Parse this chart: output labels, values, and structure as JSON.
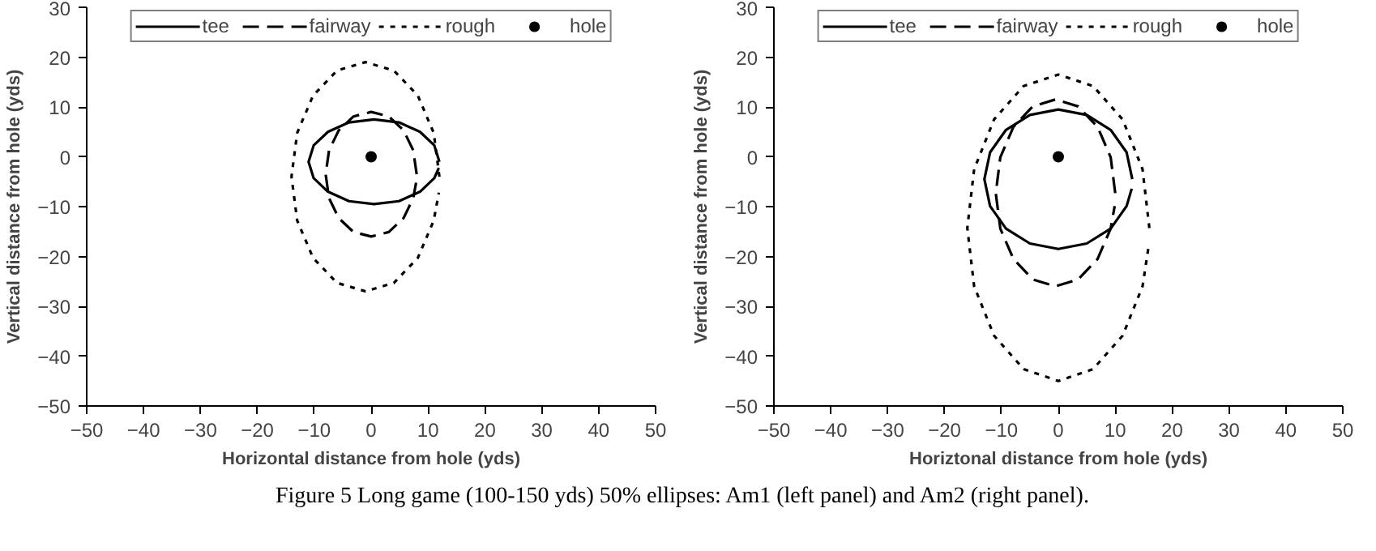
{
  "chart_data": [
    {
      "type": "line",
      "xlabel": "Horizontal distance from hole (yds)",
      "ylabel": "Vertical distance from hole (yds)",
      "xlim": [
        -50,
        50
      ],
      "ylim": [
        -50,
        30
      ],
      "xticks": [
        -50,
        -40,
        -30,
        -20,
        -10,
        0,
        10,
        20,
        30,
        40,
        50
      ],
      "yticks": [
        -50,
        -40,
        -30,
        -20,
        -10,
        0,
        10,
        20,
        30
      ],
      "grid": false,
      "legend": "top",
      "series": [
        {
          "name": "tee",
          "color": "#000000",
          "line_style": "solid",
          "x": [
            12,
            11.1,
            8.6,
            4.9,
            0.5,
            -3.9,
            -7.6,
            -10.1,
            -11,
            -10.1,
            -7.6,
            -3.9,
            0.5,
            4.9,
            8.6,
            11.1,
            11.9
          ],
          "values": [
            -1,
            2.3,
            5.0,
            6.9,
            7.5,
            6.9,
            5.0,
            2.3,
            -1,
            -4.3,
            -7.0,
            -8.9,
            -9.5,
            -8.9,
            -7.0,
            -4.3,
            -2.2
          ]
        },
        {
          "name": "fairway",
          "color": "#000000",
          "line_style": "dashed",
          "x": [
            8,
            7.4,
            5.7,
            3.1,
            0,
            -3.1,
            -5.7,
            -7.4,
            -8,
            -7.4,
            -5.7,
            -3.1,
            0,
            3.1,
            5.7,
            7.4,
            7.9
          ],
          "values": [
            -3.5,
            1.3,
            5.3,
            8.1,
            9,
            8.1,
            5.3,
            1.3,
            -3.5,
            -8.3,
            -12.3,
            -15.1,
            -16,
            -15.1,
            -12.3,
            -8.3,
            -5.2
          ]
        },
        {
          "name": "rough",
          "color": "#000000",
          "line_style": "dotted",
          "x": [
            12,
            11.0,
            8.2,
            4.0,
            -1,
            -6.0,
            -10.2,
            -13.0,
            -14,
            -13.0,
            -10.2,
            -6.0,
            -1,
            4.0,
            8.2,
            11.0,
            11.9
          ],
          "values": [
            -4,
            4.8,
            12.3,
            17.3,
            19,
            17.3,
            12.3,
            4.8,
            -4,
            -12.8,
            -20.3,
            -25.3,
            -27,
            -25.3,
            -20.3,
            -12.8,
            -7.2
          ]
        },
        {
          "name": "hole",
          "type": "scatter",
          "marker": "circle",
          "color": "#000000",
          "x": [
            0
          ],
          "values": [
            0
          ]
        }
      ]
    },
    {
      "type": "line",
      "xlabel": "Horiztonal distance from hole (yds)",
      "ylabel": "Vertical distance from hole (yds)",
      "xlim": [
        -50,
        50
      ],
      "ylim": [
        -50,
        30
      ],
      "xticks": [
        -50,
        -40,
        -30,
        -20,
        -10,
        0,
        10,
        20,
        30,
        40,
        50
      ],
      "yticks": [
        -50,
        -40,
        -30,
        -20,
        -10,
        0,
        10,
        20,
        30
      ],
      "grid": false,
      "legend": "top",
      "annotations": [
        "Figure 5 Long game (100-150 yds) 50% ellipses: Am1 (left panel) and Am2 (right panel)."
      ],
      "series": [
        {
          "name": "tee",
          "color": "#000000",
          "line_style": "solid",
          "x": [
            13,
            12.0,
            9.2,
            5.0,
            0,
            -5.0,
            -9.2,
            -12.0,
            -13,
            -12.0,
            -9.2,
            -5.0,
            0,
            5.0,
            9.2,
            12.0,
            12.9
          ],
          "values": [
            -4.5,
            0.9,
            5.4,
            8.4,
            9.5,
            8.4,
            5.4,
            0.9,
            -4.5,
            -9.9,
            -14.4,
            -17.4,
            -18.5,
            -17.4,
            -14.4,
            -9.9,
            -6.4
          ]
        },
        {
          "name": "fairway",
          "color": "#000000",
          "line_style": "dashed",
          "x": [
            10,
            9.2,
            6.9,
            3.5,
            -0.5,
            -4.5,
            -7.9,
            -10.2,
            -11,
            -10.2,
            -7.9,
            -4.5,
            -0.5,
            3.5,
            6.9,
            9.2,
            9.9
          ],
          "values": [
            -7.3,
            -0.1,
            6.0,
            10.1,
            11.5,
            10.1,
            6.0,
            -0.1,
            -7.3,
            -14.4,
            -20.5,
            -24.6,
            -26,
            -24.6,
            -20.5,
            -14.4,
            -9.9
          ]
        },
        {
          "name": "rough",
          "color": "#000000",
          "line_style": "dotted",
          "x": [
            16,
            14.8,
            11.3,
            6.1,
            0,
            -6.1,
            -11.3,
            -14.8,
            -16,
            -14.8,
            -11.3,
            -6.1,
            0,
            6.1,
            11.3,
            14.8,
            15.8
          ],
          "values": [
            -14.3,
            -2.5,
            7.5,
            14.2,
            16.5,
            14.2,
            7.5,
            -2.5,
            -14.3,
            -26.0,
            -35.9,
            -42.6,
            -45,
            -42.6,
            -35.9,
            -26.0,
            -18.5
          ]
        },
        {
          "name": "hole",
          "type": "scatter",
          "marker": "circle",
          "color": "#000000",
          "x": [
            0
          ],
          "values": [
            0
          ]
        }
      ]
    }
  ]
}
